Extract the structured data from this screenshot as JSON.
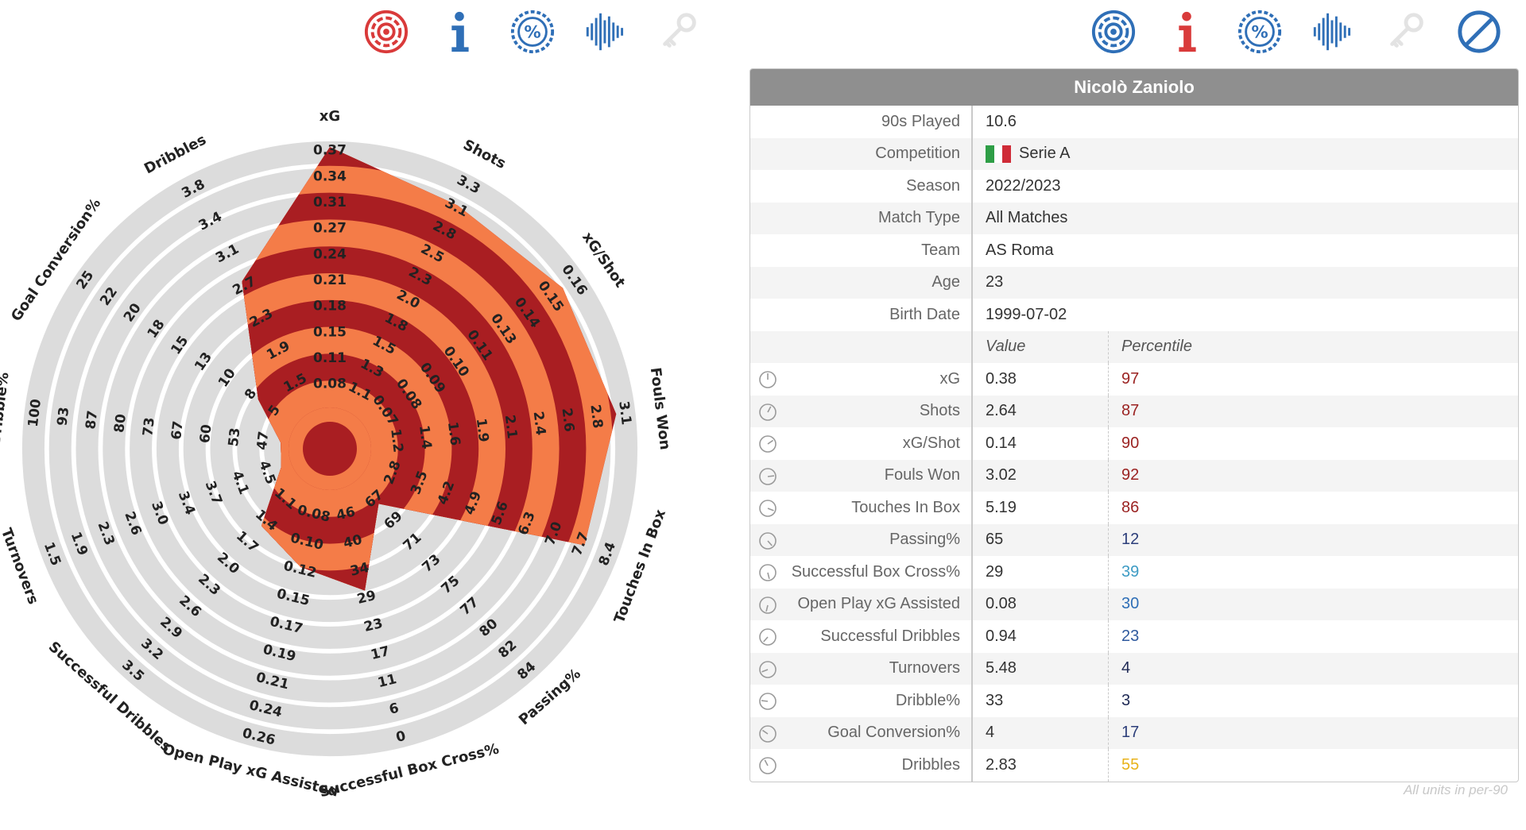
{
  "toolbar_left": [
    {
      "icon": "target-icon",
      "color": "#d93a3a"
    },
    {
      "icon": "info-icon",
      "color": "#2f6fb7"
    },
    {
      "icon": "percent-badge-icon",
      "color": "#2f6fb7"
    },
    {
      "icon": "waveform-icon",
      "color": "#2f6fb7"
    },
    {
      "icon": "key-icon",
      "color": "#e3e3e3"
    }
  ],
  "toolbar_right": [
    {
      "icon": "target-icon",
      "color": "#2f6fb7"
    },
    {
      "icon": "info-icon",
      "color": "#d93a3a"
    },
    {
      "icon": "percent-badge-icon",
      "color": "#2f6fb7"
    },
    {
      "icon": "waveform-icon",
      "color": "#2f6fb7"
    },
    {
      "icon": "key-icon",
      "color": "#e3e3e3"
    },
    {
      "icon": "no-entry-icon",
      "color": "#2f6fb7"
    }
  ],
  "player": {
    "name": "Nicolò Zaniolo",
    "info": [
      {
        "label": "90s Played",
        "value": "10.6"
      },
      {
        "label": "Competition",
        "value": "Serie A",
        "flag": [
          "#2e9e46",
          "#ffffff",
          "#cf2b37"
        ]
      },
      {
        "label": "Season",
        "value": "2022/2023"
      },
      {
        "label": "Match Type",
        "value": "All Matches"
      },
      {
        "label": "Team",
        "value": "AS Roma"
      },
      {
        "label": "Age",
        "value": "23"
      },
      {
        "label": "Birth Date",
        "value": "1999-07-02"
      }
    ],
    "stats_header": {
      "value": "Value",
      "percentile": "Percentile"
    },
    "stats": [
      {
        "label": "xG",
        "value": "0.38",
        "percentile": "97",
        "color": "#9b2322"
      },
      {
        "label": "Shots",
        "value": "2.64",
        "percentile": "87",
        "color": "#9b2322"
      },
      {
        "label": "xG/Shot",
        "value": "0.14",
        "percentile": "90",
        "color": "#9b2322"
      },
      {
        "label": "Fouls Won",
        "value": "3.02",
        "percentile": "92",
        "color": "#9b2322"
      },
      {
        "label": "Touches In Box",
        "value": "5.19",
        "percentile": "86",
        "color": "#9b2322"
      },
      {
        "label": "Passing%",
        "value": "65",
        "percentile": "12",
        "color": "#2c3e7a"
      },
      {
        "label": "Successful Box Cross%",
        "value": "29",
        "percentile": "39",
        "color": "#3d9bc4"
      },
      {
        "label": "Open Play xG Assisted",
        "value": "0.08",
        "percentile": "30",
        "color": "#2f6fb7"
      },
      {
        "label": "Successful Dribbles",
        "value": "0.94",
        "percentile": "23",
        "color": "#2f5a9e"
      },
      {
        "label": "Turnovers",
        "value": "5.48",
        "percentile": "4",
        "color": "#1f2a55"
      },
      {
        "label": "Dribble%",
        "value": "33",
        "percentile": "3",
        "color": "#1f2a55"
      },
      {
        "label": "Goal Conversion%",
        "value": "4",
        "percentile": "17",
        "color": "#2c3e7a"
      },
      {
        "label": "Dribbles",
        "value": "2.83",
        "percentile": "55",
        "color": "#e8b21a"
      }
    ],
    "footnote": "All units in per-90"
  },
  "chart_data": {
    "type": "radar",
    "ring_colors": [
      "#a91e22",
      "#f47c48"
    ],
    "ring_track_color": "#dcdcdc",
    "axes": [
      {
        "label": "xG",
        "ticks": [
          "0.08",
          "0.11",
          "0.15",
          "0.18",
          "0.21",
          "0.24",
          "0.27",
          "0.31",
          "0.34",
          "0.37"
        ],
        "percentile": 97
      },
      {
        "label": "Shots",
        "ticks": [
          "1.1",
          "1.3",
          "1.5",
          "1.8",
          "2.0",
          "2.3",
          "2.5",
          "2.8",
          "3.1",
          "3.3"
        ],
        "percentile": 87
      },
      {
        "label": "xG/Shot",
        "ticks": [
          "0.07",
          "0.08",
          "0.09",
          "0.10",
          "0.11",
          "0.13",
          "0.14",
          "0.15",
          "0.16"
        ],
        "percentile": 90
      },
      {
        "label": "Fouls Won",
        "ticks": [
          "1.2",
          "1.4",
          "1.6",
          "1.9",
          "2.1",
          "2.4",
          "2.6",
          "2.8",
          "3.1"
        ],
        "percentile": 92
      },
      {
        "label": "Touches In Box",
        "ticks": [
          "2.8",
          "3.5",
          "4.2",
          "4.9",
          "5.6",
          "6.3",
          "7.0",
          "7.7",
          "8.4"
        ],
        "percentile": 86
      },
      {
        "label": "Passing%",
        "ticks": [
          "67",
          "69",
          "71",
          "73",
          "75",
          "77",
          "80",
          "82",
          "84"
        ],
        "percentile": 12
      },
      {
        "label": "Successful Box Cross%",
        "ticks": [
          "46",
          "40",
          "34",
          "29",
          "23",
          "17",
          "11",
          "6",
          "0"
        ],
        "percentile": 39
      },
      {
        "label": "Open Play xG Assisted",
        "ticks": [
          "0.08",
          "0.10",
          "0.12",
          "0.15",
          "0.17",
          "0.19",
          "0.21",
          "0.24",
          "0.26"
        ],
        "percentile": 30
      },
      {
        "label": "Successful Dribbles",
        "ticks": [
          "1.1",
          "1.4",
          "1.7",
          "2.0",
          "2.3",
          "2.6",
          "2.9",
          "3.2",
          "3.5"
        ],
        "percentile": 23
      },
      {
        "label": "Turnovers",
        "ticks": [
          "4.5",
          "4.1",
          "3.7",
          "3.4",
          "3.0",
          "2.6",
          "2.3",
          "1.9",
          "1.5"
        ],
        "percentile": 4
      },
      {
        "label": "Dribble%",
        "ticks": [
          "47",
          "53",
          "60",
          "67",
          "73",
          "80",
          "87",
          "93",
          "100"
        ],
        "percentile": 3
      },
      {
        "label": "Goal Conversion%",
        "ticks": [
          "5",
          "8",
          "10",
          "13",
          "15",
          "18",
          "20",
          "22",
          "25"
        ],
        "percentile": 17
      },
      {
        "label": "Dribbles",
        "ticks": [
          "1.5",
          "1.9",
          "2.3",
          "2.7",
          "3.1",
          "3.4",
          "3.8"
        ],
        "percentile": 55
      }
    ]
  }
}
